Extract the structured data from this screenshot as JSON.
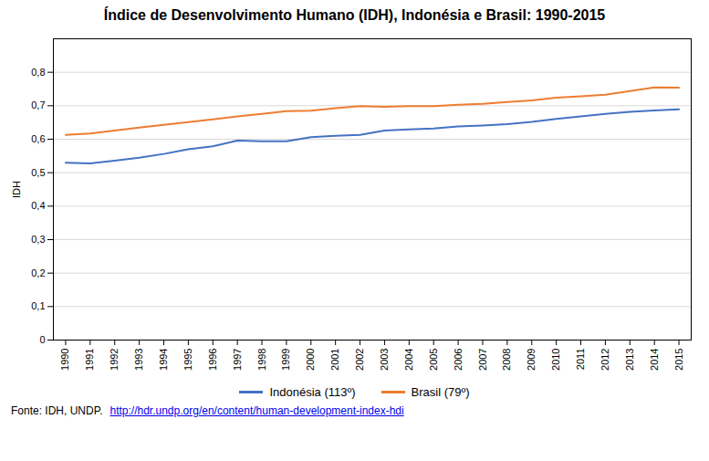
{
  "chart_data": {
    "type": "line",
    "title": "Índice de Desenvolvimento Humano (IDH), Indonésia e Brasil: 1990-2015",
    "y_label": "IDH",
    "x": [
      1990,
      1991,
      1992,
      1993,
      1994,
      1995,
      1996,
      1997,
      1998,
      1999,
      2000,
      2001,
      2002,
      2003,
      2004,
      2005,
      2006,
      2007,
      2008,
      2009,
      2010,
      2011,
      2012,
      2013,
      2014,
      2015
    ],
    "series": [
      {
        "name": "Indonésia (113º)",
        "color": "#4472C4",
        "values": [
          0.53,
          0.528,
          0.536,
          0.545,
          0.556,
          0.57,
          0.579,
          0.596,
          0.594,
          0.594,
          0.606,
          0.61,
          0.613,
          0.626,
          0.629,
          0.632,
          0.638,
          0.641,
          0.645,
          0.652,
          0.661,
          0.668,
          0.676,
          0.682,
          0.686,
          0.689
        ]
      },
      {
        "name": "Brasil (79º)",
        "color": "#ED7D31",
        "values": [
          0.613,
          0.617,
          0.626,
          0.635,
          0.643,
          0.651,
          0.659,
          0.668,
          0.676,
          0.684,
          0.685,
          0.693,
          0.699,
          0.697,
          0.699,
          0.699,
          0.703,
          0.706,
          0.711,
          0.716,
          0.724,
          0.728,
          0.733,
          0.744,
          0.755,
          0.754
        ]
      }
    ],
    "xlim": [
      1989.5,
      2015.5
    ],
    "xticks": [
      1990,
      1991,
      1992,
      1993,
      1994,
      1995,
      1996,
      1997,
      1998,
      1999,
      2000,
      2001,
      2002,
      2003,
      2004,
      2005,
      2006,
      2007,
      2008,
      2009,
      2010,
      2011,
      2012,
      2013,
      2014,
      2015
    ],
    "ylim": [
      0,
      0.9
    ],
    "yticks": [
      0,
      {
        "value": 0.1,
        "label": "0,1"
      },
      {
        "value": 0.2,
        "label": "0,2"
      },
      {
        "value": 0.3,
        "label": "0,3"
      },
      {
        "value": 0.4,
        "label": "0,4"
      },
      {
        "value": 0.5,
        "label": "0,5"
      },
      {
        "value": 0.6,
        "label": "0,6"
      },
      {
        "value": 0.7,
        "label": "0,7"
      },
      {
        "value": 0.8,
        "label": "0,8"
      }
    ],
    "grid": true,
    "legend": "bottom",
    "annotations": [
      "Fonte: IDH, UNDP.",
      "http://hdr.undp.org/en/content/human-development-index-hdi"
    ]
  }
}
